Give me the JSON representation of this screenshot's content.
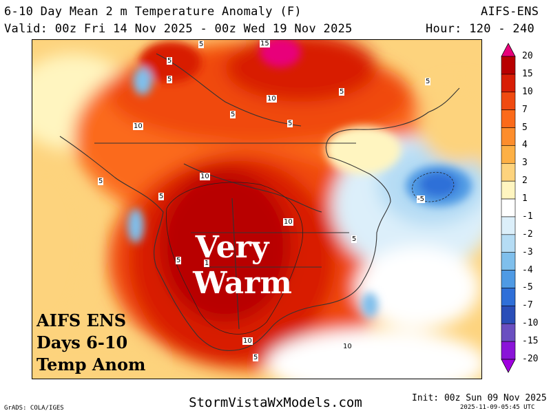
{
  "header": {
    "title": "6-10 Day Mean 2 m Temperature Anomaly (F)",
    "model": "AIFS-ENS",
    "valid": "Valid: 00z Fri 14 Nov 2025 - 00z Wed 19 Nov 2025",
    "hours": "Hour: 120 - 240"
  },
  "map": {
    "overlay_main_line1": "Very",
    "overlay_main_line2": "Warm",
    "overlay_corner_line1": "AIFS ENS",
    "overlay_corner_line2": "Days 6-10",
    "overlay_corner_line3": "Temp Anom",
    "contour_labels": [
      "5",
      "5",
      "15",
      "10",
      "5",
      "5",
      "5",
      "10",
      "5",
      "10",
      "10",
      "5",
      "5",
      "5",
      "10",
      "5",
      "-5",
      "10",
      "5",
      "5",
      "1"
    ]
  },
  "legend": {
    "labels": [
      "20",
      "15",
      "10",
      "7",
      "5",
      "4",
      "3",
      "2",
      "1",
      "-1",
      "-2",
      "-3",
      "-4",
      "-5",
      "-7",
      "-10",
      "-15",
      "-20"
    ],
    "colors": [
      "#e8007a",
      "#b80000",
      "#d81e05",
      "#f04a10",
      "#fb6a1a",
      "#fd8d2c",
      "#fdb045",
      "#fdd37d",
      "#fff5c0",
      "#ffffff",
      "#dceffa",
      "#b5dcf4",
      "#7fbfec",
      "#4f9ae4",
      "#2f6fd8",
      "#2a4eb8",
      "#6a4fc0",
      "#8a14d8",
      "#a000e0"
    ]
  },
  "footer": {
    "site": "StormVistaWxModels.com",
    "grads": "GrADS: COLA/IGES",
    "init": "Init: 00z Sun 09 Nov 2025",
    "timestamp": "2025-11-09-05:45 UTC"
  }
}
